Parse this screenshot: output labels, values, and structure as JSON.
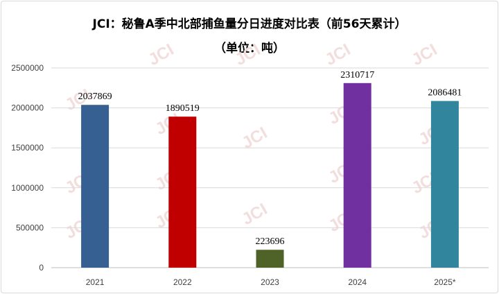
{
  "chart_data": {
    "type": "bar",
    "title": "JCI：秘鲁A季中北部捕鱼量分日进度对比表（前56天累计）",
    "subtitle": "（单位：吨）",
    "categories": [
      "2021",
      "2022",
      "2023",
      "2024",
      "2025*"
    ],
    "values": [
      2037869,
      1890519,
      223696,
      2310717,
      2086481
    ],
    "colors": [
      "#376092",
      "#c00000",
      "#4f6228",
      "#7030a0",
      "#31859c"
    ],
    "yticks": [
      "0",
      "500000",
      "1000000",
      "1500000",
      "2000000",
      "2500000"
    ],
    "ylim": [
      0,
      2500000
    ],
    "grid": true,
    "legend": "none",
    "watermark": "JCI"
  }
}
